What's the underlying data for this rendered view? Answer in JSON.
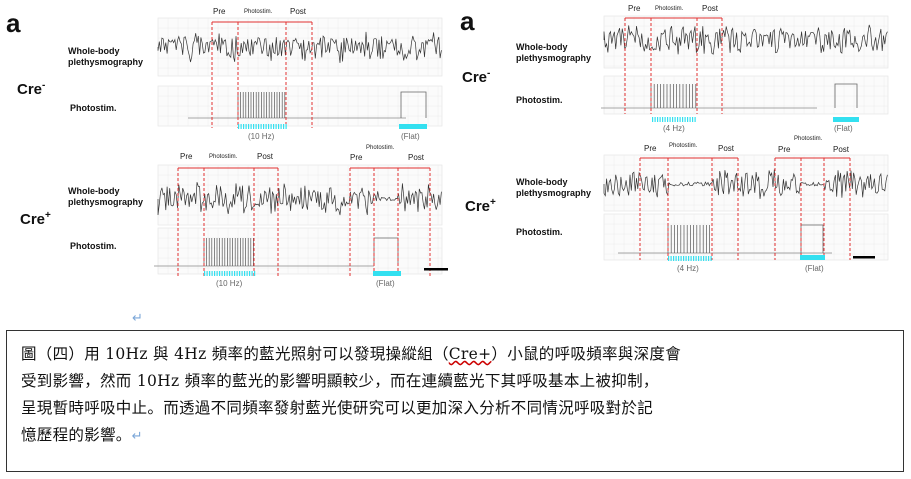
{
  "panels": [
    {
      "letter": "a",
      "rows": [
        {
          "cre": "Cre",
          "sup": "-",
          "wb_label": "Whole-body plethysmography",
          "ps_label": "Photostim.",
          "phases": [
            "Pre",
            "Photostim.",
            "Post"
          ],
          "freq": "(10 Hz)",
          "flat": "(Flat)"
        },
        {
          "cre": "Cre",
          "sup": "+",
          "wb_label": "Whole-body plethysmography",
          "ps_label": "Photostim.",
          "phases": [
            "Pre",
            "Photostim.",
            "Post"
          ],
          "freq": "(10 Hz)",
          "flat": "(Flat)",
          "phases2": [
            "Pre",
            "Photostim.",
            "Post"
          ]
        }
      ]
    },
    {
      "letter": "a",
      "rows": [
        {
          "cre": "Cre",
          "sup": "-",
          "wb_label": "Whole-body plethysmography",
          "ps_label": "Photostim.",
          "phases": [
            "Pre",
            "Photostim.",
            "Post"
          ],
          "freq": "(4 Hz)",
          "flat": "(Flat)"
        },
        {
          "cre": "Cre",
          "sup": "+",
          "wb_label": "Whole-body plethysmography",
          "ps_label": "Photostim.",
          "phases": [
            "Pre",
            "Photostim.",
            "Post"
          ],
          "freq": "(4 Hz)",
          "flat": "(Flat)",
          "phases2": [
            "Pre",
            "Photostim.",
            "Post"
          ]
        }
      ]
    }
  ],
  "caption": {
    "line1_a": "圖（四）用 10Hz 與 4Hz 頻率的藍光照射可以發現操縱組（",
    "line1_u": "Cre+",
    "line1_b": "）小鼠的呼吸頻率與深度會",
    "line2": "受到影響，然而 10Hz 頻率的藍光的影響明顯較少，而在連續藍光下其呼吸基本上被抑制，",
    "line3": "呈現暫時呼吸中止。而透過不同頻率發射藍光使研究可以更加深入分析不同情況呼吸對於記",
    "line4": "憶歷程的影響。"
  },
  "colors": {
    "dashed": "#e23030",
    "cyan": "#33e0f0",
    "trace": "#333333"
  }
}
